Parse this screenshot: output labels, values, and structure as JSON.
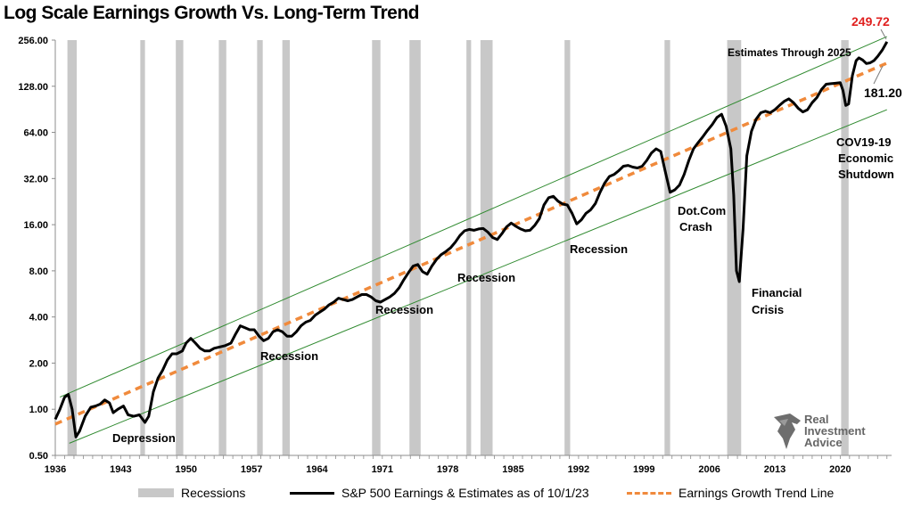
{
  "chart_data": {
    "type": "line",
    "title": "Log Scale Earnings Growth Vs. Long-Term Trend",
    "y_scale": "log2",
    "ylim": [
      0.5,
      256
    ],
    "y_ticks": [
      "256.00",
      "128.00",
      "64.00",
      "32.00",
      "16.00",
      "8.00",
      "4.00",
      "2.00",
      "1.00",
      "0.50"
    ],
    "y_tick_values": [
      256,
      128,
      64,
      32,
      16,
      8,
      4,
      2,
      1,
      0.5
    ],
    "xlim": [
      1936,
      2025.5
    ],
    "x_ticks": [
      "1936",
      "1943",
      "1950",
      "1957",
      "1964",
      "1971",
      "1978",
      "1985",
      "1992",
      "1999",
      "2006",
      "2013",
      "2020"
    ],
    "grid": false,
    "legend_placement": "bottom",
    "recessions": [
      [
        1937.3,
        1938.3
      ],
      [
        1945.1,
        1945.6
      ],
      [
        1948.9,
        1949.7
      ],
      [
        1953.5,
        1954.3
      ],
      [
        1957.6,
        1958.2
      ],
      [
        1960.3,
        1961.1
      ],
      [
        1969.9,
        1970.8
      ],
      [
        1973.9,
        1975.1
      ],
      [
        1980.0,
        1980.5
      ],
      [
        1981.5,
        1982.8
      ],
      [
        1990.5,
        1991.1
      ],
      [
        2001.2,
        2001.8
      ],
      [
        2007.9,
        2009.4
      ],
      [
        2020.1,
        2020.9
      ]
    ],
    "series": [
      {
        "name": "S&P 500 Earnings & Estimates as of 10/1/23",
        "color": "#000000",
        "points": [
          [
            1936.0,
            0.86
          ],
          [
            1936.5,
            1.0
          ],
          [
            1937.0,
            1.2
          ],
          [
            1937.4,
            1.25
          ],
          [
            1937.8,
            1.0
          ],
          [
            1938.2,
            0.66
          ],
          [
            1938.6,
            0.72
          ],
          [
            1939.2,
            0.9
          ],
          [
            1939.8,
            1.03
          ],
          [
            1940.3,
            1.05
          ],
          [
            1940.8,
            1.08
          ],
          [
            1941.3,
            1.15
          ],
          [
            1941.8,
            1.1
          ],
          [
            1942.2,
            0.95
          ],
          [
            1942.7,
            1.0
          ],
          [
            1943.3,
            1.05
          ],
          [
            1943.8,
            0.92
          ],
          [
            1944.4,
            0.9
          ],
          [
            1945.0,
            0.92
          ],
          [
            1945.6,
            0.82
          ],
          [
            1946.0,
            0.9
          ],
          [
            1946.5,
            1.3
          ],
          [
            1947.0,
            1.6
          ],
          [
            1947.5,
            1.8
          ],
          [
            1948.0,
            2.1
          ],
          [
            1948.5,
            2.3
          ],
          [
            1949.0,
            2.3
          ],
          [
            1949.6,
            2.4
          ],
          [
            1950.0,
            2.7
          ],
          [
            1950.5,
            2.9
          ],
          [
            1951.0,
            2.7
          ],
          [
            1951.5,
            2.5
          ],
          [
            1952.0,
            2.4
          ],
          [
            1952.5,
            2.4
          ],
          [
            1953.0,
            2.5
          ],
          [
            1953.6,
            2.55
          ],
          [
            1954.2,
            2.6
          ],
          [
            1954.8,
            2.7
          ],
          [
            1955.3,
            3.1
          ],
          [
            1955.8,
            3.5
          ],
          [
            1956.3,
            3.4
          ],
          [
            1956.8,
            3.3
          ],
          [
            1957.3,
            3.3
          ],
          [
            1957.8,
            3.0
          ],
          [
            1958.3,
            2.8
          ],
          [
            1958.8,
            2.9
          ],
          [
            1959.3,
            3.2
          ],
          [
            1959.8,
            3.3
          ],
          [
            1960.3,
            3.2
          ],
          [
            1960.8,
            3.0
          ],
          [
            1961.3,
            3.0
          ],
          [
            1961.8,
            3.2
          ],
          [
            1962.3,
            3.5
          ],
          [
            1962.8,
            3.7
          ],
          [
            1963.3,
            3.8
          ],
          [
            1963.8,
            4.1
          ],
          [
            1964.3,
            4.3
          ],
          [
            1964.8,
            4.5
          ],
          [
            1965.3,
            4.8
          ],
          [
            1965.8,
            5.0
          ],
          [
            1966.3,
            5.3
          ],
          [
            1966.8,
            5.2
          ],
          [
            1967.3,
            5.1
          ],
          [
            1967.8,
            5.2
          ],
          [
            1968.3,
            5.4
          ],
          [
            1968.8,
            5.6
          ],
          [
            1969.3,
            5.6
          ],
          [
            1969.8,
            5.4
          ],
          [
            1970.3,
            5.1
          ],
          [
            1970.8,
            5.0
          ],
          [
            1971.3,
            5.2
          ],
          [
            1971.8,
            5.4
          ],
          [
            1972.3,
            5.7
          ],
          [
            1972.8,
            6.2
          ],
          [
            1973.3,
            7.0
          ],
          [
            1973.8,
            7.8
          ],
          [
            1974.3,
            8.6
          ],
          [
            1974.8,
            8.8
          ],
          [
            1975.3,
            7.9
          ],
          [
            1975.8,
            7.6
          ],
          [
            1976.3,
            8.6
          ],
          [
            1976.8,
            9.5
          ],
          [
            1977.3,
            10.2
          ],
          [
            1977.8,
            10.7
          ],
          [
            1978.3,
            11.3
          ],
          [
            1978.8,
            12.3
          ],
          [
            1979.3,
            13.6
          ],
          [
            1979.8,
            14.6
          ],
          [
            1980.3,
            14.9
          ],
          [
            1980.8,
            14.7
          ],
          [
            1981.3,
            15.0
          ],
          [
            1981.8,
            15.1
          ],
          [
            1982.3,
            14.3
          ],
          [
            1982.8,
            13.2
          ],
          [
            1983.3,
            12.8
          ],
          [
            1983.8,
            14.0
          ],
          [
            1984.3,
            15.5
          ],
          [
            1984.8,
            16.4
          ],
          [
            1985.3,
            15.6
          ],
          [
            1985.8,
            15.0
          ],
          [
            1986.3,
            14.6
          ],
          [
            1986.8,
            14.7
          ],
          [
            1987.3,
            15.8
          ],
          [
            1987.8,
            17.5
          ],
          [
            1988.3,
            21.5
          ],
          [
            1988.8,
            24.0
          ],
          [
            1989.3,
            24.5
          ],
          [
            1989.8,
            22.8
          ],
          [
            1990.3,
            21.8
          ],
          [
            1990.8,
            21.5
          ],
          [
            1991.3,
            19.0
          ],
          [
            1991.8,
            16.2
          ],
          [
            1992.3,
            17.2
          ],
          [
            1992.8,
            19.0
          ],
          [
            1993.3,
            20.0
          ],
          [
            1993.8,
            22.0
          ],
          [
            1994.3,
            26.0
          ],
          [
            1994.8,
            30.0
          ],
          [
            1995.3,
            33.0
          ],
          [
            1995.8,
            34.0
          ],
          [
            1996.3,
            36.0
          ],
          [
            1996.8,
            38.5
          ],
          [
            1997.3,
            39.0
          ],
          [
            1997.8,
            38.0
          ],
          [
            1998.3,
            37.5
          ],
          [
            1998.8,
            38.5
          ],
          [
            1999.3,
            42.0
          ],
          [
            1999.8,
            47.0
          ],
          [
            2000.3,
            50.0
          ],
          [
            2000.8,
            48.0
          ],
          [
            2001.3,
            35.0
          ],
          [
            2001.8,
            26.0
          ],
          [
            2002.3,
            27.0
          ],
          [
            2002.8,
            29.0
          ],
          [
            2003.3,
            34.0
          ],
          [
            2003.8,
            42.0
          ],
          [
            2004.3,
            50.0
          ],
          [
            2004.8,
            55.0
          ],
          [
            2005.3,
            60.0
          ],
          [
            2005.8,
            66.0
          ],
          [
            2006.3,
            72.0
          ],
          [
            2006.8,
            80.0
          ],
          [
            2007.3,
            84.0
          ],
          [
            2007.8,
            70.0
          ],
          [
            2008.3,
            50.0
          ],
          [
            2008.6,
            25.0
          ],
          [
            2008.9,
            8.0
          ],
          [
            2009.2,
            6.8
          ],
          [
            2009.6,
            15.0
          ],
          [
            2010.0,
            45.0
          ],
          [
            2010.5,
            65.0
          ],
          [
            2011.0,
            78.0
          ],
          [
            2011.5,
            86.0
          ],
          [
            2012.0,
            88.0
          ],
          [
            2012.5,
            86.0
          ],
          [
            2013.0,
            90.0
          ],
          [
            2013.5,
            96.0
          ],
          [
            2014.0,
            102.0
          ],
          [
            2014.5,
            106.0
          ],
          [
            2015.0,
            100.0
          ],
          [
            2015.5,
            92.0
          ],
          [
            2016.0,
            87.0
          ],
          [
            2016.5,
            90.0
          ],
          [
            2017.0,
            100.0
          ],
          [
            2017.5,
            108.0
          ],
          [
            2018.0,
            122.0
          ],
          [
            2018.5,
            132.0
          ],
          [
            2019.0,
            133.0
          ],
          [
            2019.5,
            134.0
          ],
          [
            2020.0,
            135.0
          ],
          [
            2020.3,
            120.0
          ],
          [
            2020.6,
            96.0
          ],
          [
            2020.9,
            98.0
          ],
          [
            2021.3,
            150.0
          ],
          [
            2021.7,
            188.0
          ],
          [
            2022.0,
            196.0
          ],
          [
            2022.4,
            190.0
          ],
          [
            2022.8,
            180.0
          ],
          [
            2023.2,
            182.0
          ],
          [
            2023.6,
            188.0
          ],
          [
            2024.0,
            200.0
          ],
          [
            2024.5,
            220.0
          ],
          [
            2025.0,
            249.72
          ]
        ]
      },
      {
        "name": "Earnings Growth Trend Line",
        "color": "#f08a3c",
        "points": [
          [
            1936.0,
            0.8
          ],
          [
            2025.0,
            181.2
          ]
        ]
      }
    ],
    "channel_lines": [
      {
        "color": "#2f8a2f",
        "points": [
          [
            1936.5,
            1.2
          ],
          [
            2025.0,
            270.0
          ]
        ]
      },
      {
        "color": "#2f8a2f",
        "points": [
          [
            1937.5,
            0.6
          ],
          [
            2025.0,
            90.0
          ]
        ]
      }
    ]
  },
  "annotations": {
    "peak_value": "249.72",
    "trend_value": "181.20",
    "estimates": "Estimates Through 2025",
    "covid_1": "COV19-19",
    "covid_2": "Economic",
    "covid_3": "Shutdown",
    "dotcom_1": "Dot.Com",
    "dotcom_2": "Crash",
    "financial_1": "Financial",
    "financial_2": "Crisis",
    "depression": "Depression",
    "recession_1": "Recession",
    "recession_2": "Recession",
    "recession_3": "Recession",
    "recession_4": "Recession"
  },
  "legend": {
    "recessions": "Recessions",
    "earnings": "S&P 500 Earnings & Estimates as of 10/1/23",
    "trend": "Earnings Growth Trend Line"
  },
  "logo": {
    "line1": "Real",
    "line2": "Investment",
    "line3": "Advice"
  },
  "colors": {
    "recession_band": "#c8c8c8",
    "earnings": "#000000",
    "trend": "#f08a3c",
    "channel": "#2f8a2f",
    "peak_label": "#e0201f"
  }
}
